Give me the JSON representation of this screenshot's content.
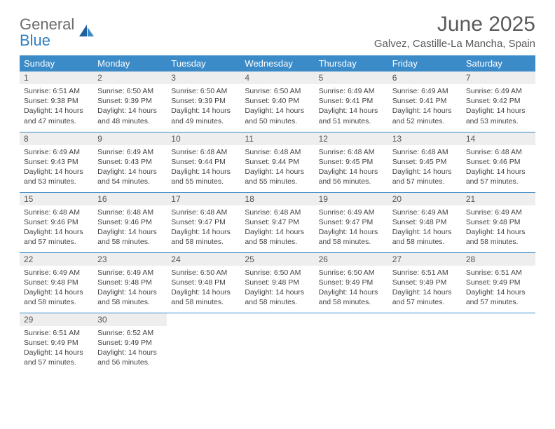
{
  "brand": {
    "word1": "General",
    "word2": "Blue"
  },
  "title": "June 2025",
  "location": "Galvez, Castille-La Mancha, Spain",
  "colors": {
    "header_bg": "#3b8bc8",
    "header_text": "#ffffff",
    "daynum_bg": "#eeeeee",
    "row_divider": "#3b8bc8",
    "body_text": "#444444",
    "title_text": "#5a5a5a",
    "logo_gray": "#6b6b6b",
    "logo_blue": "#2f7fc1",
    "page_bg": "#ffffff"
  },
  "typography": {
    "title_fontsize": 30,
    "location_fontsize": 15,
    "header_fontsize": 13,
    "daynum_fontsize": 12,
    "body_fontsize": 10.5
  },
  "weekdays": [
    "Sunday",
    "Monday",
    "Tuesday",
    "Wednesday",
    "Thursday",
    "Friday",
    "Saturday"
  ],
  "weeks": [
    [
      {
        "n": "1",
        "sunrise": "6:51 AM",
        "sunset": "9:38 PM",
        "daylight": "14 hours and 47 minutes."
      },
      {
        "n": "2",
        "sunrise": "6:50 AM",
        "sunset": "9:39 PM",
        "daylight": "14 hours and 48 minutes."
      },
      {
        "n": "3",
        "sunrise": "6:50 AM",
        "sunset": "9:39 PM",
        "daylight": "14 hours and 49 minutes."
      },
      {
        "n": "4",
        "sunrise": "6:50 AM",
        "sunset": "9:40 PM",
        "daylight": "14 hours and 50 minutes."
      },
      {
        "n": "5",
        "sunrise": "6:49 AM",
        "sunset": "9:41 PM",
        "daylight": "14 hours and 51 minutes."
      },
      {
        "n": "6",
        "sunrise": "6:49 AM",
        "sunset": "9:41 PM",
        "daylight": "14 hours and 52 minutes."
      },
      {
        "n": "7",
        "sunrise": "6:49 AM",
        "sunset": "9:42 PM",
        "daylight": "14 hours and 53 minutes."
      }
    ],
    [
      {
        "n": "8",
        "sunrise": "6:49 AM",
        "sunset": "9:43 PM",
        "daylight": "14 hours and 53 minutes."
      },
      {
        "n": "9",
        "sunrise": "6:49 AM",
        "sunset": "9:43 PM",
        "daylight": "14 hours and 54 minutes."
      },
      {
        "n": "10",
        "sunrise": "6:48 AM",
        "sunset": "9:44 PM",
        "daylight": "14 hours and 55 minutes."
      },
      {
        "n": "11",
        "sunrise": "6:48 AM",
        "sunset": "9:44 PM",
        "daylight": "14 hours and 55 minutes."
      },
      {
        "n": "12",
        "sunrise": "6:48 AM",
        "sunset": "9:45 PM",
        "daylight": "14 hours and 56 minutes."
      },
      {
        "n": "13",
        "sunrise": "6:48 AM",
        "sunset": "9:45 PM",
        "daylight": "14 hours and 57 minutes."
      },
      {
        "n": "14",
        "sunrise": "6:48 AM",
        "sunset": "9:46 PM",
        "daylight": "14 hours and 57 minutes."
      }
    ],
    [
      {
        "n": "15",
        "sunrise": "6:48 AM",
        "sunset": "9:46 PM",
        "daylight": "14 hours and 57 minutes."
      },
      {
        "n": "16",
        "sunrise": "6:48 AM",
        "sunset": "9:46 PM",
        "daylight": "14 hours and 58 minutes."
      },
      {
        "n": "17",
        "sunrise": "6:48 AM",
        "sunset": "9:47 PM",
        "daylight": "14 hours and 58 minutes."
      },
      {
        "n": "18",
        "sunrise": "6:48 AM",
        "sunset": "9:47 PM",
        "daylight": "14 hours and 58 minutes."
      },
      {
        "n": "19",
        "sunrise": "6:49 AM",
        "sunset": "9:47 PM",
        "daylight": "14 hours and 58 minutes."
      },
      {
        "n": "20",
        "sunrise": "6:49 AM",
        "sunset": "9:48 PM",
        "daylight": "14 hours and 58 minutes."
      },
      {
        "n": "21",
        "sunrise": "6:49 AM",
        "sunset": "9:48 PM",
        "daylight": "14 hours and 58 minutes."
      }
    ],
    [
      {
        "n": "22",
        "sunrise": "6:49 AM",
        "sunset": "9:48 PM",
        "daylight": "14 hours and 58 minutes."
      },
      {
        "n": "23",
        "sunrise": "6:49 AM",
        "sunset": "9:48 PM",
        "daylight": "14 hours and 58 minutes."
      },
      {
        "n": "24",
        "sunrise": "6:50 AM",
        "sunset": "9:48 PM",
        "daylight": "14 hours and 58 minutes."
      },
      {
        "n": "25",
        "sunrise": "6:50 AM",
        "sunset": "9:48 PM",
        "daylight": "14 hours and 58 minutes."
      },
      {
        "n": "26",
        "sunrise": "6:50 AM",
        "sunset": "9:49 PM",
        "daylight": "14 hours and 58 minutes."
      },
      {
        "n": "27",
        "sunrise": "6:51 AM",
        "sunset": "9:49 PM",
        "daylight": "14 hours and 57 minutes."
      },
      {
        "n": "28",
        "sunrise": "6:51 AM",
        "sunset": "9:49 PM",
        "daylight": "14 hours and 57 minutes."
      }
    ],
    [
      {
        "n": "29",
        "sunrise": "6:51 AM",
        "sunset": "9:49 PM",
        "daylight": "14 hours and 57 minutes."
      },
      {
        "n": "30",
        "sunrise": "6:52 AM",
        "sunset": "9:49 PM",
        "daylight": "14 hours and 56 minutes."
      },
      null,
      null,
      null,
      null,
      null
    ]
  ],
  "labels": {
    "sunrise": "Sunrise:",
    "sunset": "Sunset:",
    "daylight": "Daylight:"
  }
}
